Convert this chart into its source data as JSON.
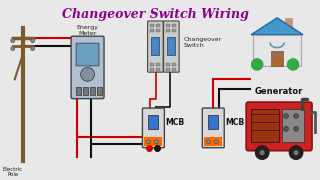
{
  "title": "Changeover Switch Wiring",
  "title_color": "#8B008B",
  "title_fontsize": 9,
  "bg_color": "#e8e8e8",
  "labels": {
    "electric_pole": "Electric\nPole",
    "energy_meter": "Energy\nMeter",
    "changeover_switch": "Changeover\nSwitch",
    "mcb1": "MCB",
    "mcb2": "MCB",
    "generator": "Generator"
  },
  "wire_red": "#cc0000",
  "wire_black": "#111111",
  "orange_color": "#ff6600",
  "house_roof": "#4499cc",
  "house_door": "#aa6633",
  "generator_red": "#cc2222"
}
